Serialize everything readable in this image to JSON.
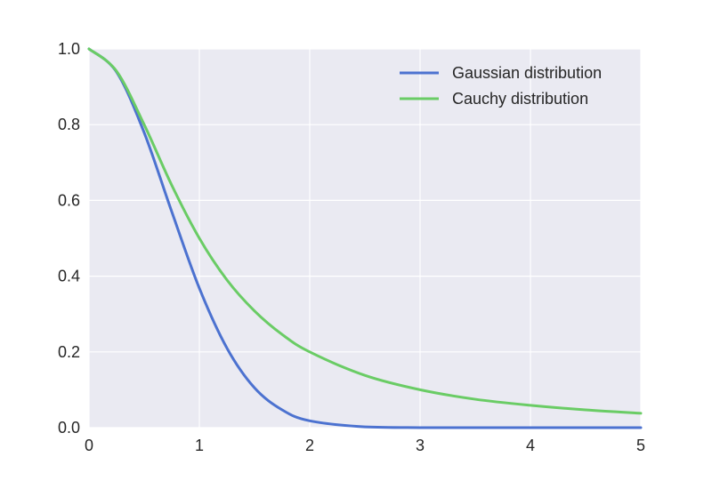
{
  "chart_data": {
    "type": "line",
    "title": "",
    "xlabel": "",
    "ylabel": "",
    "xlim": [
      0,
      5
    ],
    "ylim": [
      0,
      1
    ],
    "x_ticks": [
      "0",
      "1",
      "2",
      "3",
      "4",
      "5"
    ],
    "y_ticks": [
      "0.0",
      "0.2",
      "0.4",
      "0.6",
      "0.8",
      "1.0"
    ],
    "grid": true,
    "legend_position": "top-right",
    "background_color": "#eaeaf2",
    "series": [
      {
        "name": "Gaussian distribution",
        "color": "#4c72d0",
        "x": [
          0,
          0.25,
          0.5,
          0.75,
          1.0,
          1.25,
          1.5,
          1.75,
          2.0,
          2.5,
          3.0,
          3.5,
          4.0,
          4.5,
          5.0
        ],
        "y": [
          1.0,
          0.939,
          0.779,
          0.57,
          0.368,
          0.21,
          0.105,
          0.047,
          0.018,
          0.002,
          0.0,
          0.0,
          0.0,
          0.0,
          0.0
        ]
      },
      {
        "name": "Cauchy distribution",
        "color": "#6acc65",
        "x": [
          0,
          0.25,
          0.5,
          0.75,
          1.0,
          1.25,
          1.5,
          1.75,
          2.0,
          2.5,
          3.0,
          3.5,
          4.0,
          4.5,
          5.0
        ],
        "y": [
          1.0,
          0.941,
          0.8,
          0.64,
          0.5,
          0.39,
          0.308,
          0.246,
          0.2,
          0.138,
          0.1,
          0.075,
          0.059,
          0.047,
          0.038
        ]
      }
    ]
  }
}
